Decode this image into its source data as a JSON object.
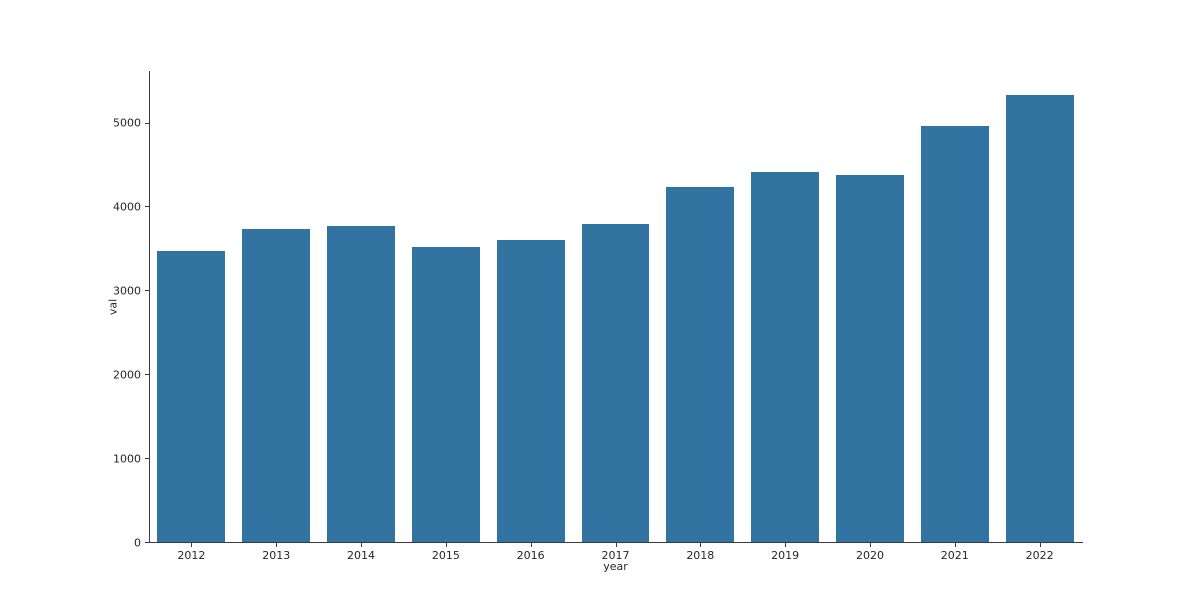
{
  "chart_data": {
    "type": "bar",
    "title": "",
    "xlabel": "year",
    "ylabel": "val",
    "categories": [
      "2012",
      "2013",
      "2014",
      "2015",
      "2016",
      "2017",
      "2018",
      "2019",
      "2020",
      "2021",
      "2022"
    ],
    "values": [
      3475,
      3735,
      3765,
      3520,
      3595,
      3795,
      4230,
      4410,
      4380,
      4960,
      5325
    ],
    "yticks": [
      0,
      1000,
      2000,
      3000,
      4000,
      5000
    ],
    "ytick_labels": [
      "0",
      "1000",
      "2000",
      "3000",
      "4000",
      "5000"
    ],
    "ylim": [
      0,
      5615
    ],
    "grid": "off",
    "legend": "none",
    "bar_color": "#3274a1",
    "axis_color": "#3b3b3b",
    "text_color": "#262626",
    "background_color": "#ffffff"
  }
}
